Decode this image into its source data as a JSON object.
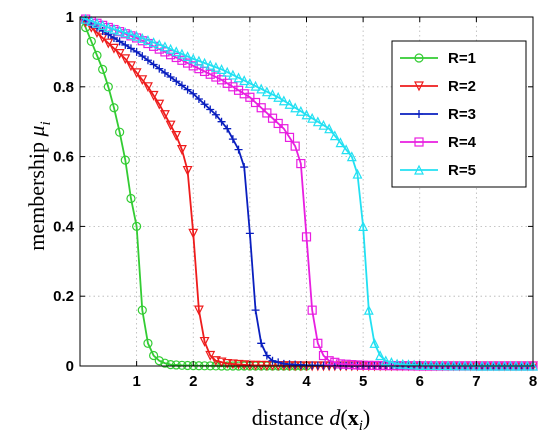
{
  "chart_data": {
    "type": "line",
    "xlabel": "distance d(xi)",
    "xlabel_parts": {
      "prefix": "distance ",
      "func": "d",
      "open": "(",
      "var": "x",
      "sub": "i",
      "close": ")"
    },
    "ylabel": "membership μi",
    "ylabel_parts": {
      "prefix": "membership ",
      "sym": "μ",
      "sub": "i"
    },
    "xlim": [
      0,
      8
    ],
    "ylim": [
      0,
      1
    ],
    "x_ticks": [
      1,
      2,
      3,
      4,
      5,
      6,
      7,
      8
    ],
    "x_tick_labels": [
      "1",
      "2",
      "3",
      "4",
      "5",
      "6",
      "7",
      "8"
    ],
    "y_ticks": [
      0,
      0.2,
      0.4,
      0.6,
      0.8,
      1
    ],
    "y_tick_labels": [
      "0",
      "0.2",
      "0.4",
      "0.6",
      "0.8",
      "1"
    ],
    "grid": true,
    "legend_position": "top-right",
    "series": [
      {
        "name": "R=1",
        "color": "#33cc33",
        "marker": "circle",
        "points": [
          [
            0,
            1.0
          ],
          [
            0.1,
            0.97
          ],
          [
            0.2,
            0.93
          ],
          [
            0.3,
            0.89
          ],
          [
            0.4,
            0.85
          ],
          [
            0.5,
            0.8
          ],
          [
            0.6,
            0.74
          ],
          [
            0.7,
            0.67
          ],
          [
            0.8,
            0.59
          ],
          [
            0.9,
            0.48
          ],
          [
            1.0,
            0.4
          ],
          [
            1.1,
            0.16
          ],
          [
            1.2,
            0.065
          ],
          [
            1.3,
            0.03
          ],
          [
            1.4,
            0.015
          ],
          [
            1.5,
            0.008
          ],
          [
            1.6,
            0.004
          ],
          [
            1.8,
            0.002
          ],
          [
            2.0,
            0.001
          ],
          [
            2.5,
            0
          ],
          [
            3.0,
            0
          ],
          [
            4.0,
            0
          ],
          [
            5.0,
            0
          ],
          [
            6.0,
            0
          ],
          [
            7.0,
            0
          ],
          [
            8.0,
            0
          ]
        ],
        "marker_x": [
          0.1,
          0.2,
          0.3,
          0.4,
          0.5,
          0.6,
          0.7,
          0.8,
          0.9,
          1.0,
          1.1,
          1.2,
          1.3,
          1.4,
          1.5,
          1.6,
          1.7,
          1.8,
          1.9,
          2.0,
          2.1,
          2.2,
          2.3,
          2.4,
          2.5,
          2.6,
          2.7,
          2.8,
          2.9,
          3.0,
          3.1,
          3.2,
          3.3,
          3.4,
          3.5,
          3.6,
          3.7,
          3.8,
          3.9,
          4.0
        ]
      },
      {
        "name": "R=2",
        "color": "#ee1c1c",
        "marker": "triangle-down",
        "points": [
          [
            0,
            1.0
          ],
          [
            0.2,
            0.97
          ],
          [
            0.4,
            0.94
          ],
          [
            0.6,
            0.91
          ],
          [
            0.8,
            0.88
          ],
          [
            1.0,
            0.84
          ],
          [
            1.2,
            0.8
          ],
          [
            1.4,
            0.75
          ],
          [
            1.6,
            0.69
          ],
          [
            1.7,
            0.66
          ],
          [
            1.8,
            0.62
          ],
          [
            1.9,
            0.56
          ],
          [
            2.0,
            0.38
          ],
          [
            2.1,
            0.16
          ],
          [
            2.2,
            0.07
          ],
          [
            2.3,
            0.03
          ],
          [
            2.4,
            0.015
          ],
          [
            2.6,
            0.007
          ],
          [
            3.0,
            0.002
          ],
          [
            3.5,
            0.001
          ],
          [
            4.0,
            0
          ],
          [
            8.0,
            0
          ]
        ],
        "marker_x": [
          0.1,
          0.2,
          0.3,
          0.4,
          0.5,
          0.6,
          0.7,
          0.8,
          0.9,
          1.0,
          1.1,
          1.2,
          1.3,
          1.4,
          1.5,
          1.6,
          1.7,
          1.8,
          1.9,
          2.0,
          2.1,
          2.2,
          2.3,
          2.4,
          2.5,
          2.6,
          2.7,
          2.8,
          2.9,
          3.0,
          3.1,
          3.2,
          3.3,
          3.4,
          3.5,
          3.6,
          3.7,
          3.8,
          3.9,
          4.0,
          4.1,
          4.2,
          4.3,
          4.4,
          4.5,
          4.6,
          4.7,
          4.8,
          4.9,
          5.0,
          5.1,
          5.2,
          5.3,
          5.4,
          5.5,
          5.6,
          5.7,
          5.8,
          5.9,
          6.0,
          6.1,
          6.2,
          6.3,
          6.4,
          6.5,
          6.6,
          6.7,
          6.8,
          6.9,
          7.0,
          7.1,
          7.2,
          7.3,
          7.4,
          7.5,
          7.6,
          7.7,
          7.8,
          7.9,
          8.0
        ]
      },
      {
        "name": "R=3",
        "color": "#0a1fbf",
        "marker": "plus",
        "points": [
          [
            0,
            1.0
          ],
          [
            0.3,
            0.97
          ],
          [
            0.6,
            0.94
          ],
          [
            1.0,
            0.9
          ],
          [
            1.5,
            0.84
          ],
          [
            2.0,
            0.78
          ],
          [
            2.4,
            0.72
          ],
          [
            2.6,
            0.68
          ],
          [
            2.8,
            0.62
          ],
          [
            2.9,
            0.57
          ],
          [
            3.0,
            0.38
          ],
          [
            3.1,
            0.16
          ],
          [
            3.2,
            0.065
          ],
          [
            3.3,
            0.03
          ],
          [
            3.4,
            0.015
          ],
          [
            3.6,
            0.006
          ],
          [
            4.0,
            0.002
          ],
          [
            4.5,
            0.001
          ],
          [
            5.0,
            0
          ],
          [
            8.0,
            0
          ]
        ],
        "marker_x": [
          0.1,
          0.2,
          0.3,
          0.4,
          0.5,
          0.6,
          0.7,
          0.8,
          0.9,
          1.0,
          1.1,
          1.2,
          1.3,
          1.4,
          1.5,
          1.6,
          1.7,
          1.8,
          1.9,
          2.0,
          2.1,
          2.2,
          2.3,
          2.4,
          2.5,
          2.6,
          2.7,
          2.8,
          2.9,
          3.0,
          3.1,
          3.2,
          3.3,
          3.4,
          3.5,
          3.6,
          3.7,
          3.8,
          3.9,
          4.0,
          4.1,
          4.2,
          4.3,
          4.4,
          4.5,
          4.6,
          4.7,
          4.8,
          4.9,
          5.0,
          5.1,
          5.2,
          5.3,
          5.4,
          5.5,
          5.6,
          5.7,
          5.8,
          5.9,
          6.0,
          6.1,
          6.2,
          6.3,
          6.4,
          6.5,
          6.6,
          6.7,
          6.8,
          6.9,
          7.0,
          7.1,
          7.2,
          7.3,
          7.4,
          7.5,
          7.6,
          7.7,
          7.8,
          7.9,
          8.0
        ]
      },
      {
        "name": "R=4",
        "color": "#e81ee0",
        "marker": "square",
        "points": [
          [
            0,
            1.0
          ],
          [
            0.5,
            0.97
          ],
          [
            1.0,
            0.94
          ],
          [
            1.5,
            0.9
          ],
          [
            2.0,
            0.86
          ],
          [
            2.5,
            0.82
          ],
          [
            3.0,
            0.77
          ],
          [
            3.4,
            0.71
          ],
          [
            3.6,
            0.68
          ],
          [
            3.8,
            0.63
          ],
          [
            3.9,
            0.58
          ],
          [
            4.0,
            0.37
          ],
          [
            4.1,
            0.16
          ],
          [
            4.2,
            0.065
          ],
          [
            4.3,
            0.03
          ],
          [
            4.4,
            0.015
          ],
          [
            4.6,
            0.006
          ],
          [
            5.0,
            0.002
          ],
          [
            5.5,
            0.001
          ],
          [
            6.0,
            0
          ],
          [
            8.0,
            0
          ]
        ],
        "marker_x": [
          0.1,
          0.2,
          0.3,
          0.4,
          0.5,
          0.6,
          0.7,
          0.8,
          0.9,
          1.0,
          1.1,
          1.2,
          1.3,
          1.4,
          1.5,
          1.6,
          1.7,
          1.8,
          1.9,
          2.0,
          2.1,
          2.2,
          2.3,
          2.4,
          2.5,
          2.6,
          2.7,
          2.8,
          2.9,
          3.0,
          3.1,
          3.2,
          3.3,
          3.4,
          3.5,
          3.6,
          3.7,
          3.8,
          3.9,
          4.0,
          4.1,
          4.2,
          4.3,
          4.4,
          4.5,
          4.6,
          4.7,
          4.8,
          4.9,
          5.0,
          5.1,
          5.2,
          5.3,
          5.4,
          5.5,
          5.6,
          5.7,
          5.8,
          5.9,
          6.0,
          6.1,
          6.2,
          6.3,
          6.4,
          6.5,
          6.6,
          6.7,
          6.8,
          6.9,
          7.0,
          7.1,
          7.2,
          7.3,
          7.4,
          7.5,
          7.6,
          7.7,
          7.8,
          7.9,
          8.0
        ]
      },
      {
        "name": "R=5",
        "color": "#22e0f2",
        "marker": "triangle-up",
        "points": [
          [
            0,
            1.0
          ],
          [
            0.5,
            0.97
          ],
          [
            1.0,
            0.945
          ],
          [
            1.5,
            0.915
          ],
          [
            2.0,
            0.88
          ],
          [
            2.5,
            0.85
          ],
          [
            3.0,
            0.81
          ],
          [
            3.5,
            0.77
          ],
          [
            4.0,
            0.72
          ],
          [
            4.4,
            0.68
          ],
          [
            4.6,
            0.64
          ],
          [
            4.8,
            0.6
          ],
          [
            4.9,
            0.55
          ],
          [
            5.0,
            0.4
          ],
          [
            5.1,
            0.16
          ],
          [
            5.2,
            0.065
          ],
          [
            5.3,
            0.03
          ],
          [
            5.4,
            0.015
          ],
          [
            5.6,
            0.006
          ],
          [
            6.0,
            0.002
          ],
          [
            6.5,
            0.001
          ],
          [
            7.0,
            0
          ],
          [
            8.0,
            0
          ]
        ],
        "marker_x": [
          0.1,
          0.2,
          0.3,
          0.4,
          0.5,
          0.6,
          0.7,
          0.8,
          0.9,
          1.0,
          1.1,
          1.2,
          1.3,
          1.4,
          1.5,
          1.6,
          1.7,
          1.8,
          1.9,
          2.0,
          2.1,
          2.2,
          2.3,
          2.4,
          2.5,
          2.6,
          2.7,
          2.8,
          2.9,
          3.0,
          3.1,
          3.2,
          3.3,
          3.4,
          3.5,
          3.6,
          3.7,
          3.8,
          3.9,
          4.0,
          4.1,
          4.2,
          4.3,
          4.4,
          4.5,
          4.6,
          4.7,
          4.8,
          4.9,
          5.0,
          5.1,
          5.2,
          5.3,
          5.4,
          5.5,
          5.6,
          5.7,
          5.8,
          5.9,
          6.0,
          6.1,
          6.2,
          6.3,
          6.4,
          6.5,
          6.6,
          6.7,
          6.8,
          6.9,
          7.0,
          7.1,
          7.2,
          7.3,
          7.4,
          7.5,
          7.6,
          7.7,
          7.8,
          7.9,
          8.0
        ]
      }
    ]
  }
}
